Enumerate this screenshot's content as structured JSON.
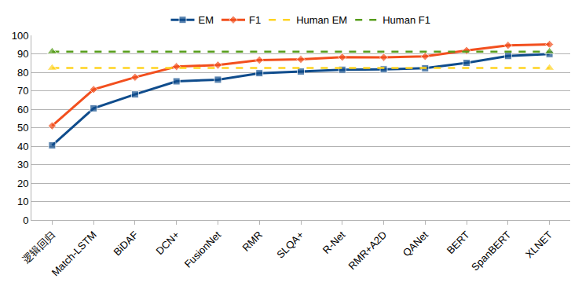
{
  "chart_data": {
    "type": "line",
    "categories": [
      "逻辑回归",
      "Match-LSTM",
      "BiDAF",
      "DCN+",
      "FusionNet",
      "RMR",
      "SLQA+",
      "R-Net",
      "RMR+A2D",
      "QANet",
      "BERT",
      "SpanBERT",
      "XLNET"
    ],
    "series": [
      {
        "name": "EM",
        "color": "#0f4c8c",
        "marker": "square",
        "line_style": "solid",
        "values": [
          40.4,
          60.5,
          68.0,
          75.1,
          76.0,
          79.5,
          80.4,
          81.4,
          81.6,
          82.2,
          85.1,
          88.8,
          89.9
        ]
      },
      {
        "name": "F1",
        "color": "#f24f1e",
        "marker": "diamond",
        "line_style": "solid",
        "values": [
          51.0,
          70.7,
          77.3,
          83.1,
          83.9,
          86.6,
          87.0,
          88.2,
          88.1,
          88.6,
          91.8,
          94.6,
          95.1
        ]
      },
      {
        "name": "Human EM",
        "color": "#ffd320",
        "marker": "triangle",
        "line_style": "dashed",
        "values": [
          82.3,
          82.3,
          82.3,
          82.3,
          82.3,
          82.3,
          82.3,
          82.3,
          82.3,
          82.3,
          82.3,
          82.3,
          82.3
        ]
      },
      {
        "name": "Human F1",
        "color": "#579d1c",
        "marker": "triangle",
        "line_style": "dashed",
        "values": [
          91.2,
          91.2,
          91.2,
          91.2,
          91.2,
          91.2,
          91.2,
          91.2,
          91.2,
          91.2,
          91.2,
          91.2,
          91.2
        ]
      }
    ],
    "ylim": [
      0,
      100
    ],
    "yticks": [
      0,
      10,
      20,
      30,
      40,
      50,
      60,
      70,
      80,
      90,
      100
    ],
    "grid": true,
    "legend": "top"
  }
}
